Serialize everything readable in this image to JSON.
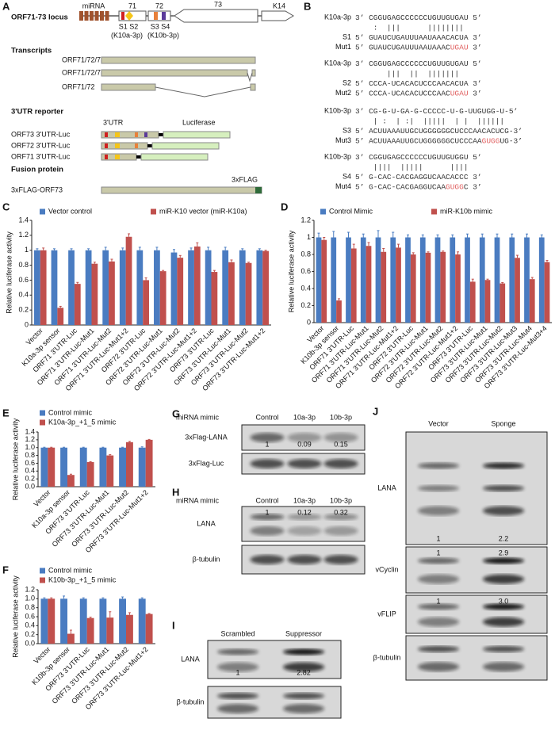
{
  "panel_a": {
    "letter": "A",
    "locus_label": "ORF71-73 locus",
    "mirna": "miRNA",
    "genes": [
      "71",
      "72",
      "73",
      "K14"
    ],
    "sites_a": "S1 S2",
    "sites_b": "S3 S4",
    "mir_a": "(K10a-3p)",
    "mir_b": "(K10b-3p)",
    "transcripts_title": "Transcripts",
    "transcripts": [
      "ORF71/72/73",
      "ORF71/72/73",
      "ORF71/72"
    ],
    "reporter_title": "3'UTR reporter",
    "utr": "3'UTR",
    "luciferase": "Luciferase",
    "reporters": [
      "ORF73 3'UTR-Luc",
      "ORF72 3'UTR-Luc",
      "ORF71 3'UTR-Luc"
    ],
    "fusion_title": "Fusion protein",
    "flag": "3xFLAG",
    "fusion": "3xFLAG-ORF73"
  },
  "panel_b": {
    "letter": "B",
    "blocks": [
      {
        "rows": [
          {
            "name": "K10a-3p",
            "parts": [
              {
                "text": "3’ CGGUGAGCCCCCCUGUUGUGAU 5’"
              }
            ]
          },
          {
            "parts": [
              {
                "text": "    :  |||      ||||||||"
              }
            ]
          },
          {
            "name": "S1",
            "parts": [
              {
                "text": "5’ GUAUCUGAUUUAAUAAACACUA 3’"
              }
            ]
          },
          {
            "name": "Mut1",
            "parts": [
              {
                "text": "5’ GUAUCUGAUUUAAUAAAC"
              },
              {
                "text": "UGAU",
                "color": "#e06060"
              },
              {
                "text": " 3’"
              }
            ]
          }
        ]
      },
      {
        "rows": [
          {
            "name": "K10a-3p",
            "parts": [
              {
                "text": "3’ CGGUGAGCCCCCCUGUUGUGAU 5’"
              }
            ]
          },
          {
            "parts": [
              {
                "text": "       |||  ||  |||||||"
              }
            ]
          },
          {
            "name": "S2",
            "parts": [
              {
                "text": "5’ CCCA-UCACACUCCCAACACUA 3’"
              }
            ]
          },
          {
            "name": "Mut2",
            "parts": [
              {
                "text": "5’ CCCA-UCACACUCCCAAC"
              },
              {
                "text": "UGAU",
                "color": "#e06060"
              },
              {
                "text": " 3’"
              }
            ]
          }
        ]
      },
      {
        "rows": [
          {
            "name": "K10b-3p",
            "parts": [
              {
                "text": "3’ CG-G-U-GA-G-CCCCC-U-G-UUGUGG-U-5’"
              }
            ]
          },
          {
            "parts": [
              {
                "text": "    | :  | :|  |||||  | |  ||||||"
              }
            ]
          },
          {
            "name": "S3",
            "parts": [
              {
                "text": "5’ ACUUAAAUUGCUGGGGGGCUCCCAACACUCG-3’"
              }
            ]
          },
          {
            "name": "Mut3",
            "parts": [
              {
                "text": "5’ ACUUAAAUUGCUGGGGGGCUCCCAA"
              },
              {
                "text": "GUGG",
                "color": "#e06060"
              },
              {
                "text": "UG-3’"
              }
            ]
          }
        ]
      },
      {
        "rows": [
          {
            "name": "K10b-3p",
            "parts": [
              {
                "text": "3’ CGGUGAGCCCCCCUGUUGUGGU 5’"
              }
            ]
          },
          {
            "parts": [
              {
                "text": "    ||||  |||||      ||||"
              }
            ]
          },
          {
            "name": "S4",
            "parts": [
              {
                "text": "5’ G-CAC-CACGAGGUCAACACCC 3’"
              }
            ]
          },
          {
            "name": "Mut4",
            "parts": [
              {
                "text": "5’ G-CAC-CACGAGGUCAA"
              },
              {
                "text": "GUGG",
                "color": "#e06060"
              },
              {
                "text": "C 3’"
              }
            ]
          }
        ]
      }
    ]
  },
  "chart_data": [
    {
      "type": "bar",
      "panel_label": "C",
      "y_label": "Relative luciferase activity",
      "legend": "top",
      "categories": [
        "Vector",
        "K10a-3p sensor",
        "ORF71 3'UTR-Luc",
        "ORF71 3'UTR-Luc-Mut1",
        "ORF71 3'UTR-Luc-Mut2",
        "ORF71 3'UTR-Luc-Mut1+2",
        "ORF72 3'UTR-Luc",
        "ORF72 3'UTR-Luc-Mut1",
        "ORF72 3'UTR-Luc-Mut2",
        "ORF72 3'UTR-Luc-Mut1+2",
        "ORF73 3'UTR-Luc",
        "ORF73 3'UTR-Luc-Mut1",
        "ORF73 3'UTR-Luc-Mut2",
        "ORF73 3'UTR-Luc-Mut1+2"
      ],
      "series": [
        {
          "name": "Vector control",
          "color": "#4a7cc1",
          "values": [
            1.0,
            1.0,
            1.0,
            1.0,
            1.0,
            1.0,
            1.0,
            1.0,
            0.97,
            1.0,
            1.0,
            1.0,
            1.0,
            1.0
          ],
          "errors": [
            0.02,
            0.02,
            0.02,
            0.02,
            0.04,
            0.03,
            0.04,
            0.04,
            0.04,
            0.03,
            0.04,
            0.04,
            0.02,
            0.02
          ]
        },
        {
          "name": "miR-K10 vector (miR-K10a)",
          "color": "#c0504d",
          "values": [
            1.0,
            0.23,
            0.55,
            0.82,
            0.85,
            1.18,
            0.6,
            0.72,
            0.9,
            1.05,
            0.71,
            0.84,
            0.83,
            0.99
          ],
          "errors": [
            0.03,
            0.02,
            0.02,
            0.02,
            0.03,
            0.04,
            0.03,
            0.01,
            0.03,
            0.05,
            0.02,
            0.03,
            0.01,
            0.01
          ]
        }
      ],
      "ylim": [
        0,
        1.4
      ],
      "yticks": [
        0,
        0.2,
        0.4,
        0.6,
        0.8,
        1,
        1.2,
        1.4
      ]
    },
    {
      "type": "bar",
      "panel_label": "D",
      "y_label": "Relative luciferase activity",
      "legend": "top",
      "categories": [
        "Vector",
        "K10b-3p sensor",
        "ORF71 3'UTR-Luc",
        "ORF71 3'UTR-Luc-Mut1",
        "ORF71 3'UTR-Luc-Mut2",
        "ORF71 3'UTR-Luc-Mut1+2",
        "ORF72 3'UTR-Luc",
        "ORF72 3'UTR-Luc-Mut1",
        "ORF72 3'UTR-Luc-Mut2",
        "ORF72 3'UTR-Luc-Mut1+2",
        "ORF73 3'UTR-Luc",
        "ORF73 3'UTR-Luc-Mut1",
        "ORF73 3'UTR-Luc-Mut2",
        "ORF73 3'UTR-Luc-Mut3",
        "ORF73 3'UTR-Luc-Mut4",
        "ORF73 3'UTR-Luc-Mut3+4"
      ],
      "series": [
        {
          "name": "Control Mimic",
          "color": "#4a7cc1",
          "values": [
            1.0,
            1.0,
            1.0,
            1.0,
            1.0,
            1.0,
            1.0,
            1.0,
            1.0,
            1.0,
            1.0,
            1.0,
            1.0,
            1.0,
            1.0,
            1.0
          ],
          "errors": [
            0.05,
            0.07,
            0.06,
            0.04,
            0.08,
            0.06,
            0.03,
            0.03,
            0.03,
            0.03,
            0.04,
            0.04,
            0.04,
            0.04,
            0.04,
            0.03
          ]
        },
        {
          "name": "miR-K10b mimic",
          "color": "#c0504d",
          "values": [
            0.97,
            0.26,
            0.87,
            0.9,
            0.83,
            0.88,
            0.8,
            0.82,
            0.83,
            0.8,
            0.48,
            0.5,
            0.46,
            0.76,
            0.51,
            0.71
          ],
          "errors": [
            0.03,
            0.02,
            0.05,
            0.04,
            0.04,
            0.04,
            0.02,
            0.01,
            0.01,
            0.03,
            0.03,
            0.01,
            0.01,
            0.03,
            0.02,
            0.02
          ]
        }
      ],
      "ylim": [
        0,
        1.2
      ],
      "yticks": [
        0,
        0.2,
        0.4,
        0.6,
        0.8,
        1,
        1.2
      ]
    },
    {
      "type": "bar",
      "panel_label": "E",
      "y_label": "Relative luciferase activity",
      "legend": "top-left",
      "categories": [
        "Vector",
        "K10a-3p sensor",
        "ORF73 3'UTR-Luc",
        "ORF73 3'UTR-Luc-Mut1",
        "ORF73 3'UTR-Luc-Mut2",
        "ORF73 3'UTR-Luc-Mut1+2"
      ],
      "series": [
        {
          "name": "Control mimic",
          "color": "#4a7cc1",
          "values": [
            1.0,
            1.0,
            1.0,
            1.0,
            1.0,
            1.0
          ],
          "errors": [
            0.01,
            0.01,
            0.01,
            0.01,
            0.01,
            0.02
          ]
        },
        {
          "name": "K10a-3p_+1_5 mimic",
          "color": "#c0504d",
          "values": [
            1.0,
            0.3,
            0.63,
            0.8,
            1.14,
            1.2
          ],
          "errors": [
            0.01,
            0.02,
            0.01,
            0.02,
            0.02,
            0.01
          ]
        }
      ],
      "ylim": [
        0,
        1.4
      ],
      "yticks": [
        {
          "value": 0,
          "label": "0.0"
        },
        0.2,
        0.4,
        0.6,
        0.8,
        {
          "value": 1,
          "label": "1.0"
        },
        1.2,
        1.4
      ]
    },
    {
      "type": "bar",
      "panel_label": "F",
      "y_label": "Relative luciferase activity",
      "legend": "top-left",
      "categories": [
        "Vector",
        "K10b-3p sensor",
        "ORF73 3'UTR-Luc",
        "ORF73 3'UTR-Luc-Mut1",
        "ORF73 3'UTR-Luc-Mut2",
        "ORF73 3'UTR-Luc-Mut1+2"
      ],
      "series": [
        {
          "name": "Control mimic",
          "color": "#4a7cc1",
          "values": [
            1.0,
            1.0,
            1.0,
            1.0,
            1.0,
            1.0
          ],
          "errors": [
            0.02,
            0.06,
            0.02,
            0.02,
            0.04,
            0.02
          ]
        },
        {
          "name": "K10b-3p_+1_5 mimic",
          "color": "#c0504d",
          "values": [
            1.0,
            0.22,
            0.57,
            0.58,
            0.64,
            0.66
          ],
          "errors": [
            0.02,
            0.08,
            0.02,
            0.13,
            0.05,
            0.01
          ]
        }
      ],
      "ylim": [
        0,
        1.2
      ],
      "yticks": [
        {
          "value": 0,
          "label": "0.0"
        },
        0.2,
        0.4,
        0.6,
        0.8,
        {
          "value": 1,
          "label": "1.0"
        },
        1.2
      ]
    }
  ],
  "blots": [
    {
      "letter": "G",
      "header": "miRNA mimic",
      "lanes": [
        "Control",
        "10a-3p",
        "10b-3p"
      ],
      "rows": [
        {
          "label": "3xFlag-LANA",
          "quant": [
            "1",
            "0.09",
            "0.15"
          ]
        },
        {
          "label": "3xFlag-Luc"
        }
      ]
    },
    {
      "letter": "H",
      "header": "miRNA mimic",
      "lanes": [
        "Control",
        "10a-3p",
        "10b-3p"
      ],
      "rows": [
        {
          "label": "LANA",
          "quant": [
            "1",
            "0.12",
            "0.32"
          ]
        },
        {
          "label": "β-tubulin"
        }
      ]
    },
    {
      "letter": "I",
      "lanes": [
        "Scrambled",
        "Suppressor"
      ],
      "rows": [
        {
          "label": "LANA",
          "quant": [
            "1",
            "2.82"
          ]
        },
        {
          "label": "β-tubulin"
        }
      ]
    },
    {
      "letter": "J",
      "lanes": [
        "Vector",
        "Sponge"
      ],
      "rows": [
        {
          "label": "LANA",
          "quant": [
            "1",
            "2.2"
          ]
        },
        {
          "label": "vCyclin",
          "quant": [
            "1",
            "2.9"
          ]
        },
        {
          "label": "vFLIP",
          "quant": [
            "1",
            "3.0"
          ]
        },
        {
          "label": "β-tubulin"
        }
      ]
    }
  ]
}
